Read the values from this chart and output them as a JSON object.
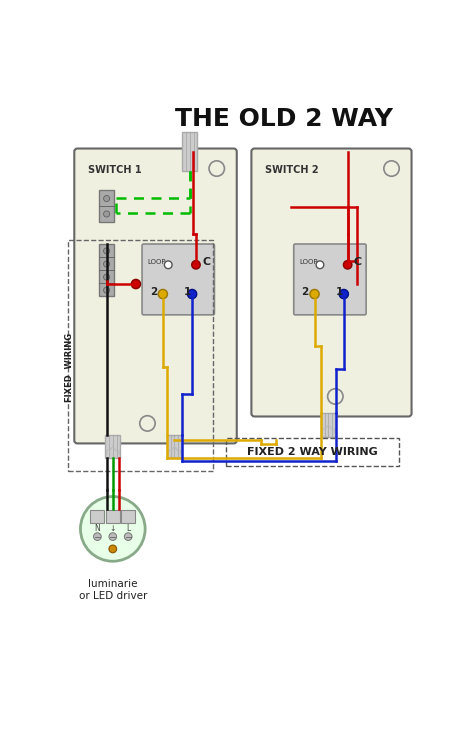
{
  "title": "THE OLD 2 WAY",
  "title_fontsize": 18,
  "bg_color": "#ffffff",
  "switch_fill": "#f0f0e0",
  "switch_border": "#666666",
  "terminal_fill": "#d0d0d0",
  "terminal_border": "#888888",
  "connector_fill": "#aaaaaa",
  "conduit_fill": "#cccccc",
  "conduit_border": "#aaaaaa",
  "lum_fill": "#e8ffe8",
  "lum_border": "#88aa88",
  "wire_red": "#cc0000",
  "wire_black": "#111111",
  "wire_yellow": "#ccaa00",
  "wire_blue": "#1122cc",
  "wire_green_dashed": "#00bb00",
  "label_switch1": "SWITCH 1",
  "label_switch2": "SWITCH 2",
  "fixed_wiring_label": "FIXED  WIRING",
  "fixed_2way_label": "FIXED 2 WAY WIRING",
  "luminarie_label": "luminarie\nor LED driver"
}
